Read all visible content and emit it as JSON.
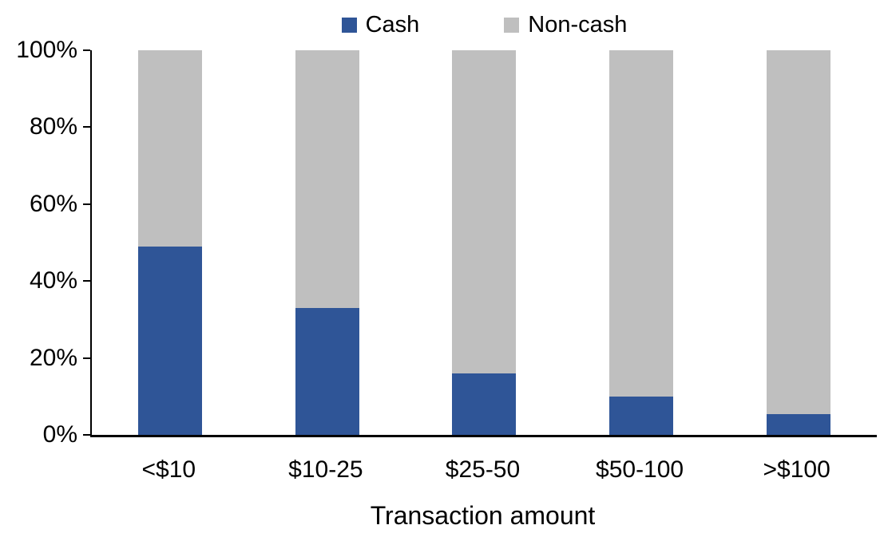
{
  "chart_data": {
    "type": "bar",
    "stacked": true,
    "title": "",
    "xlabel": "Transaction amount",
    "ylabel": "",
    "categories": [
      "<$10",
      "$10-25",
      "$25-50",
      "$50-100",
      ">$100"
    ],
    "series": [
      {
        "name": "Cash",
        "color": "#2F5597",
        "values": [
          49,
          33,
          16,
          10,
          5.5
        ]
      },
      {
        "name": "Non-cash",
        "color": "#BFBFBF",
        "values": [
          51,
          67,
          84,
          90,
          94.5
        ]
      }
    ],
    "ylim": [
      0,
      100
    ],
    "yticks": [
      "0%",
      "20%",
      "40%",
      "60%",
      "80%",
      "100%"
    ],
    "grid": false,
    "legend_position": "top",
    "colors": {
      "axis": "#000000",
      "background": "#FFFFFF",
      "text": "#000000"
    }
  }
}
